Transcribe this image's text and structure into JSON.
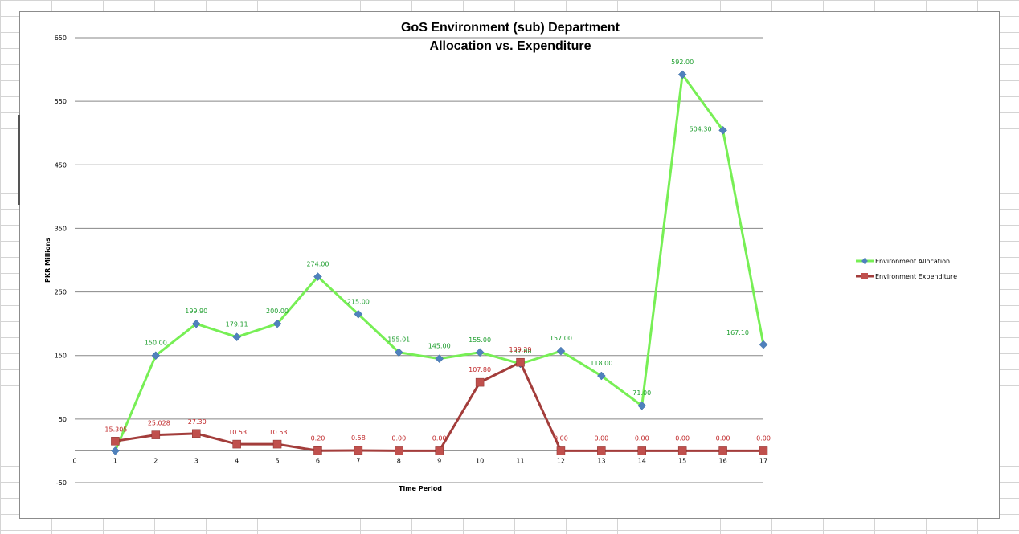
{
  "chart_data": {
    "type": "line",
    "title": "GoS Environment (sub) Department",
    "subtitle": "Allocation vs. Expenditure",
    "xlabel": "Time Period",
    "ylabel": "PKR Millions",
    "x": [
      0,
      1,
      2,
      3,
      4,
      5,
      6,
      7,
      8,
      9,
      10,
      11,
      12,
      13,
      14,
      15,
      16,
      17
    ],
    "xlim": [
      0,
      17
    ],
    "ylim": [
      -50,
      650
    ],
    "y_ticks": [
      650,
      550,
      450,
      350,
      250,
      150,
      50,
      -50
    ],
    "y_ticks_labels": [
      "650",
      "550",
      "450",
      "350",
      "250",
      "150",
      "50",
      "-50"
    ],
    "grid": true,
    "legend_position": "right",
    "series": [
      {
        "name": "Environment Allocation",
        "color": "#77ef55",
        "marker": "diamond",
        "marker_color": "#4f81bd",
        "x": [
          1,
          2,
          3,
          4,
          5,
          6,
          7,
          8,
          9,
          10,
          11,
          12,
          13,
          14,
          15,
          16,
          17
        ],
        "values": [
          0,
          150,
          199.9,
          179.11,
          200,
          274,
          215,
          155.01,
          145,
          155,
          137,
          157,
          118,
          71,
          592,
          504.3,
          167.1
        ],
        "labels": [
          "",
          "150.00",
          "199.90",
          "179.11",
          "200.00",
          "274.00",
          "215.00",
          "155.01",
          "145.00",
          "155.00",
          "137.00",
          "157.00",
          "118.00",
          "71.00",
          "592.00",
          "504.30",
          "167.10"
        ]
      },
      {
        "name": "Environment Expenditure",
        "color": "#a33d3b",
        "marker": "square",
        "marker_color": "#c0504d",
        "x": [
          1,
          2,
          3,
          4,
          5,
          6,
          7,
          8,
          9,
          10,
          11,
          12,
          13,
          14,
          15,
          16,
          17
        ],
        "values": [
          15.305,
          25.028,
          27.3,
          10.53,
          10.53,
          0.2,
          0.58,
          0,
          0,
          107.8,
          139.29,
          0,
          0,
          0,
          0,
          0,
          0
        ],
        "labels": [
          "15.305",
          "25.028",
          "27.30",
          "10.53",
          "10.53",
          "0.20",
          "0.58",
          "0.00",
          "0.00",
          "107.80",
          "139.29",
          "0.00",
          "0.00",
          "0.00",
          "0.00",
          "0.00",
          "0.00"
        ]
      }
    ]
  }
}
